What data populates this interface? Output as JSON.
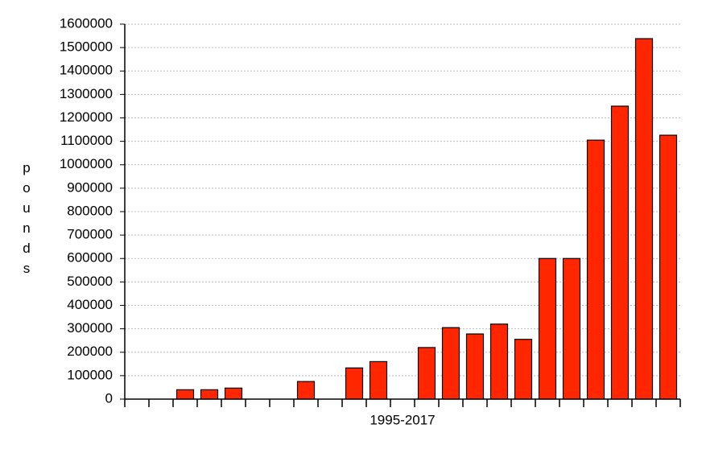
{
  "chart_data": {
    "type": "bar",
    "y_label": "pounds",
    "x_label": "1995-2017",
    "categories": [
      null,
      null,
      null,
      null,
      null,
      null,
      null,
      null,
      null,
      null,
      null,
      null,
      null,
      null,
      null,
      null,
      null,
      null,
      null,
      null,
      null,
      null,
      null
    ],
    "values": [
      0,
      0,
      40000,
      40000,
      47000,
      0,
      0,
      75000,
      0,
      133000,
      160000,
      0,
      220000,
      305000,
      278000,
      320000,
      255000,
      600000,
      600000,
      1105000,
      1250000,
      1538000,
      1126000
    ],
    "color": "#ff2600",
    "ylim": [
      0,
      1600000
    ],
    "yticks": [
      0,
      100000,
      200000,
      300000,
      400000,
      500000,
      600000,
      700000,
      800000,
      900000,
      1000000,
      1100000,
      1200000,
      1300000,
      1400000,
      1500000,
      1600000
    ],
    "grid": true
  }
}
